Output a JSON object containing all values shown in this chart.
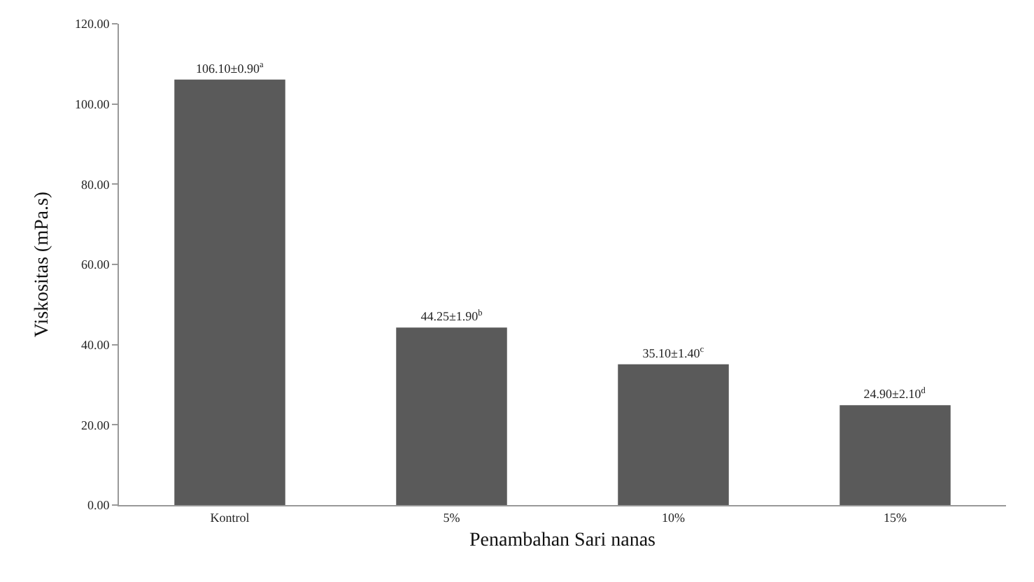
{
  "chart_data": {
    "type": "bar",
    "xlabel": "Penambahan Sari nanas",
    "ylabel": "Viskositas (mPa.s)",
    "categories": [
      "Kontrol",
      "5%",
      "10%",
      "15%"
    ],
    "values": [
      106.1,
      44.25,
      35.1,
      24.9
    ],
    "value_labels": [
      "106.10±0.90$^{a}$",
      "44.25±1.90$^{b}$",
      "35.10±1.40$^{c}$",
      "24.90±2.10$^{d}$"
    ],
    "color": "#5a5a5a",
    "ylim": [
      0,
      120
    ],
    "yticks": [
      {
        "value": 0,
        "label": "0.00"
      },
      {
        "value": 20,
        "label": "20.00"
      },
      {
        "value": 40,
        "label": "40.00"
      },
      {
        "value": 60,
        "label": "60.00"
      },
      {
        "value": 80,
        "label": "80.00"
      },
      {
        "value": 100,
        "label": "100.00"
      },
      {
        "value": 120,
        "label": "120.00"
      }
    ]
  }
}
